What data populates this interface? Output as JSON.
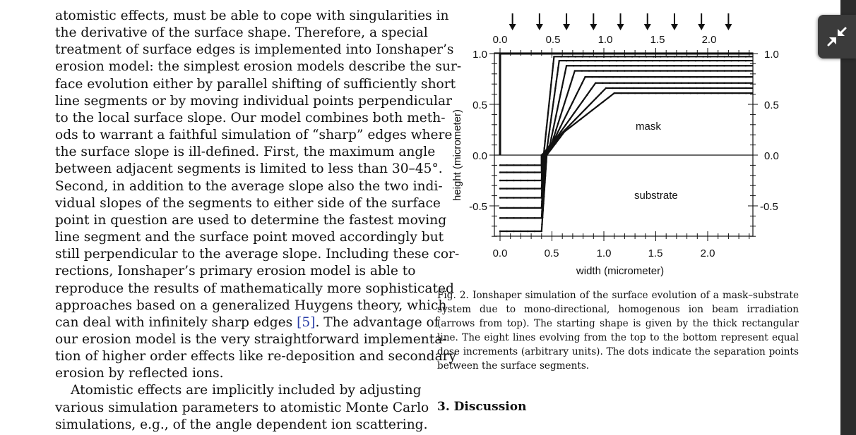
{
  "body_text": {
    "lines": [
      "atomistic effects, must be able to cope with singularities in",
      "the derivative of the surface shape. Therefore, a special",
      "treatment of surface edges is implemented into Ionshaper’s",
      "erosion model: the simplest erosion models describe the sur-",
      "face evolution either by parallel shifting of sufficiently short",
      "line segments or by moving individual points perpendicular",
      "to the local surface slope. Our model combines both meth-",
      "ods to warrant a faithful simulation of “sharp” edges where",
      "the surface slope is ill-defined. First, the maximum angle",
      "between adjacent segments is limited to less than 30–45°.",
      "Second, in addition to the average slope also the two indi-",
      "vidual slopes of the segments to either side of the surface",
      "point in question are used to determine the fastest moving",
      "line segment and the surface point moved accordingly but",
      "still perpendicular to the average slope. Including these cor-",
      "rections, Ionshaper’s primary erosion model is able to",
      "reproduce the results of mathematically more sophisticated",
      "approaches based on a generalized Huygens theory, which"
    ],
    "line19_before": "can deal with infinitely sharp edges ",
    "line19_ref": "[5]",
    "line19_after": ". The advantage of",
    "lines_after": [
      "our erosion model is the very straightforward implementa-",
      "tion of higher order effects like re-deposition and secondary",
      "erosion by reflected ions."
    ],
    "paragraph2": [
      "Atomistic effects are implicitly included by adjusting",
      "various simulation parameters to atomistic Monte Carlo",
      "simulations, e.g., of the angle dependent ion scattering."
    ]
  },
  "figure": {
    "x_label": "width (micrometer)",
    "y_label": "height (micrometer)",
    "x_ticks": [
      "0.0",
      "0.5",
      "1.0",
      "1.5",
      "2.0"
    ],
    "y_ticks_left": [
      "1.0",
      "0.5",
      "0.0",
      "-0.5"
    ],
    "y_ticks_right": [
      "1.0",
      "0.5",
      "0.0",
      "-0.5"
    ],
    "mask_label": "mask",
    "substrate_label": "substrate"
  },
  "chart_data": {
    "type": "line",
    "xlabel": "width (micrometer)",
    "ylabel": "height (micrometer)",
    "xlim": [
      0.0,
      2.45
    ],
    "ylim": [
      -0.82,
      1.03
    ],
    "x_ticks": [
      0.0,
      0.5,
      1.0,
      1.5,
      2.0
    ],
    "y_ticks": [
      -0.5,
      0.0,
      0.5,
      1.0
    ],
    "grid": false,
    "annotations": [
      "mask",
      "substrate"
    ],
    "beam_arrows_x": [
      0.12,
      0.38,
      0.64,
      0.9,
      1.16,
      1.42,
      1.68,
      1.94,
      2.2
    ],
    "series": [
      {
        "x": [
          0.0,
          0.0,
          2.45
        ],
        "y": [
          0.0,
          1.0,
          1.0
        ]
      },
      {
        "x": [
          0.0,
          0.4,
          0.4,
          0.42,
          0.52,
          2.45
        ],
        "y": [
          -0.1,
          -0.1,
          0.0,
          0.0,
          0.97,
          0.97
        ]
      },
      {
        "x": [
          0.0,
          0.4,
          0.4,
          0.45,
          0.57,
          2.45
        ],
        "y": [
          -0.17,
          -0.17,
          0.0,
          0.05,
          0.93,
          0.93
        ]
      },
      {
        "x": [
          0.0,
          0.4,
          0.41,
          0.48,
          0.64,
          2.45
        ],
        "y": [
          -0.25,
          -0.25,
          0.0,
          0.1,
          0.88,
          0.88
        ]
      },
      {
        "x": [
          0.0,
          0.4,
          0.42,
          0.5,
          0.72,
          2.45
        ],
        "y": [
          -0.33,
          -0.33,
          0.0,
          0.12,
          0.83,
          0.83
        ]
      },
      {
        "x": [
          0.0,
          0.4,
          0.42,
          0.52,
          0.82,
          2.45
        ],
        "y": [
          -0.42,
          -0.42,
          0.0,
          0.15,
          0.77,
          0.77
        ]
      },
      {
        "x": [
          0.0,
          0.4,
          0.43,
          0.55,
          0.92,
          2.45
        ],
        "y": [
          -0.52,
          -0.52,
          0.0,
          0.18,
          0.71,
          0.71
        ]
      },
      {
        "x": [
          0.0,
          0.4,
          0.44,
          0.58,
          1.02,
          2.45
        ],
        "y": [
          -0.62,
          -0.62,
          0.0,
          0.2,
          0.66,
          0.66
        ]
      },
      {
        "x": [
          0.0,
          0.4,
          0.45,
          0.62,
          1.1,
          2.45
        ],
        "y": [
          -0.75,
          -0.75,
          0.0,
          0.23,
          0.61,
          0.61
        ]
      }
    ],
    "interface_line": {
      "x": [
        0.0,
        2.45
      ],
      "y": [
        0.0,
        0.0
      ]
    }
  },
  "caption": {
    "lines": [
      "Fig. 2.  Ionshaper simulation of the surface evolution of a mask–substrate",
      "system due to mono-directional, homogenous ion beam irradiation",
      "(arrows from top). The starting shape is given by the thick rectangular",
      "line. The eight lines evolving from the top to the bottom represent equal",
      "dose increments (arbitrary units). The dots indicate the separation points",
      "between the surface segments."
    ]
  },
  "section": {
    "heading": "3. Discussion"
  },
  "viewer": {
    "exit_fullscreen_icon": "collapse-arrows-icon"
  }
}
